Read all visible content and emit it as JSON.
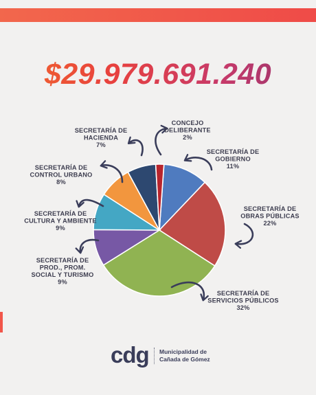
{
  "header": {
    "total": "$29.979.691.240"
  },
  "chart_data": {
    "type": "pie",
    "slices": [
      {
        "lines": [
          "SECRETARÍA DE",
          "GOBIERNO",
          "11%"
        ],
        "value": 11,
        "color": "#4f7bbf"
      },
      {
        "lines": [
          "SECRETARÍA DE",
          "OBRAS PÚBLICAS",
          "22%"
        ],
        "value": 22,
        "color": "#bf4b47"
      },
      {
        "lines": [
          "SECRETARÍA DE",
          "SERVICIOS PÚBLICOS",
          "32%"
        ],
        "value": 32,
        "color": "#90b352"
      },
      {
        "lines": [
          "SECRETARÍA DE",
          "PROD., PROM.",
          "SOCIAL Y TURISMO",
          "9%"
        ],
        "value": 9,
        "color": "#7758a5"
      },
      {
        "lines": [
          "SECRETARÍA DE",
          "CULTURA Y AMBIENTE",
          "9%"
        ],
        "value": 9,
        "color": "#44a7c4"
      },
      {
        "lines": [
          "SECRETARÍA DE",
          "CONTROL URBANO",
          "8%"
        ],
        "value": 8,
        "color": "#f2963e"
      },
      {
        "lines": [
          "SECRETARÍA DE",
          "HACIENDA",
          "7%"
        ],
        "value": 7,
        "color": "#2d4870"
      },
      {
        "lines": [
          "CONCEJO",
          "DELIBERANTE",
          "2%"
        ],
        "value": 2,
        "color": "#b8252d"
      }
    ]
  },
  "footer": {
    "logo_text": "cdg",
    "municipality_line1": "Municipalidad de",
    "municipality_line2": "Cañada de Gómez"
  }
}
